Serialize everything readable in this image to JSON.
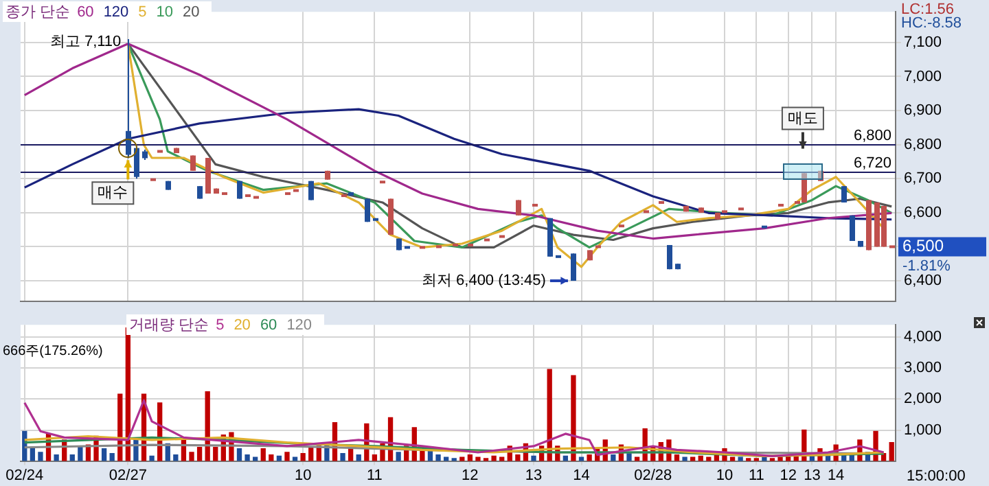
{
  "chart_data": [
    {
      "type": "candlestick",
      "legend_title": "종가 단순",
      "legend": "top left",
      "grid": true,
      "marker": "none",
      "tick_labels": "y",
      "categories": [
        "02/24",
        null,
        null,
        null,
        null,
        null,
        null,
        null,
        null,
        null,
        null,
        null,
        null,
        "02/27",
        null,
        null,
        null,
        null,
        null,
        null,
        null,
        null,
        null,
        null,
        null,
        null,
        null,
        null,
        null,
        null,
        null,
        null,
        null,
        null,
        null,
        "10",
        null,
        null,
        null,
        null,
        null,
        null,
        null,
        null,
        "11",
        null,
        null,
        null,
        null,
        null,
        null,
        null,
        null,
        null,
        null,
        null,
        "12",
        null,
        null,
        null,
        null,
        null,
        null,
        null,
        "13",
        null,
        null,
        null,
        null,
        null,
        "14",
        null,
        null,
        null,
        null,
        null,
        null,
        null,
        null,
        "02/28",
        null,
        null,
        null,
        null,
        null,
        null,
        null,
        null,
        "10",
        null,
        null,
        null,
        "11",
        null,
        null,
        null,
        "12",
        null,
        null,
        "13",
        null,
        null,
        "14",
        null,
        null,
        null,
        null,
        null,
        null,
        null
      ],
      "ylim": [
        6340,
        7190
      ],
      "yticks": [
        {
          "value": 6400,
          "label": "6,400"
        },
        {
          "value": 6500,
          "label": null
        },
        {
          "value": 6600,
          "label": "6,600"
        },
        {
          "value": 6700,
          "label": "6,700"
        },
        {
          "value": 6800,
          "label": "6,800"
        },
        {
          "value": 6900,
          "label": "6,900"
        },
        {
          "value": 7000,
          "label": "7,000"
        },
        {
          "value": 7100,
          "label": "7,100"
        }
      ],
      "series": [
        {
          "color": "#c0504d",
          "ohlc": [
            null,
            null,
            null,
            null,
            null,
            null,
            null,
            null,
            null,
            null,
            null,
            null,
            null,
            null,
            null,
            null,
            [
              6697,
              6697,
              6697,
              6697
            ],
            [
              6780,
              6780,
              6780,
              6780
            ],
            null,
            [
              6775,
              6790,
              6775,
              6790
            ],
            null,
            [
              6723,
              6768,
              6723,
              6768
            ],
            null,
            [
              6656,
              6761,
              6656,
              6761
            ],
            [
              6656,
              6671,
              6656,
              6671
            ],
            [
              6656,
              6656,
              6656,
              6656
            ],
            null,
            null,
            [
              6650,
              6650,
              6650,
              6650
            ],
            [
              6645,
              6645,
              6645,
              6645
            ],
            null,
            null,
            null,
            [
              6656,
              6656,
              6656,
              6656
            ],
            [
              6665,
              6665,
              6665,
              6665
            ],
            null,
            null,
            null,
            [
              6697,
              6723,
              6697,
              6723
            ],
            null,
            [
              6650,
              6650,
              6650,
              6650
            ],
            null,
            null,
            null,
            null,
            [
              6690,
              6690,
              6690,
              6690
            ],
            [
              6535,
              6641,
              6535,
              6641
            ],
            null,
            null,
            null,
            [
              6498,
              6498,
              6498,
              6498
            ],
            null,
            [
              6500,
              6500,
              6500,
              6500
            ],
            null,
            [
              6505,
              6505,
              6505,
              6505
            ],
            null,
            [
              6505,
              6505,
              6505,
              6505
            ],
            null,
            [
              6520,
              6520,
              6520,
              6520
            ],
            null,
            [
              6530,
              6530,
              6530,
              6530
            ],
            null,
            [
              6592,
              6637,
              6592,
              6637
            ],
            null,
            [
              6622,
              6622,
              6622,
              6622
            ],
            null,
            null,
            null,
            null,
            null,
            null,
            [
              6460,
              6490,
              6460,
              6490
            ],
            [
              6500,
              6500,
              6500,
              6500
            ],
            null,
            null,
            [
              6561,
              6561,
              6561,
              6561
            ],
            null,
            null,
            [
              6603,
              6603,
              6603,
              6603
            ],
            null,
            [
              6630,
              6630,
              6630,
              6630
            ],
            null,
            null,
            [
              6603,
              6620,
              6603,
              6620
            ],
            null,
            [
              6600,
              6615,
              6600,
              6615
            ],
            null,
            [
              6580,
              6600,
              6580,
              6600
            ],
            [
              6603,
              6603,
              6603,
              6603
            ],
            null,
            [
              6611,
              6611,
              6611,
              6611
            ],
            null,
            null,
            null,
            null,
            [
              6622,
              6622,
              6622,
              6622
            ],
            null,
            [
              6630,
              6630,
              6630,
              6630
            ],
            [
              6630,
              6716,
              6630,
              6716
            ],
            null,
            [
              6693,
              6723,
              6693,
              6723
            ],
            null,
            null,
            null,
            null,
            null,
            [
              6490,
              6637,
              6490,
              6637
            ],
            [
              6500,
              6630,
              6500,
              6630
            ],
            [
              6500,
              6620,
              6500,
              6620
            ],
            [
              6500,
              6500,
              6500,
              6500
            ]
          ]
        },
        {
          "color": "#1f4e9a",
          "ohlc": [
            null,
            null,
            null,
            null,
            null,
            null,
            null,
            null,
            null,
            null,
            null,
            null,
            null,
            [
              6840,
              7110,
              6760,
              6770
            ],
            [
              6790,
              6795,
              6700,
              6705
            ],
            [
              6780,
              6785,
              6755,
              6760
            ],
            null,
            null,
            [
              6693,
              6693,
              6667,
              6667
            ],
            null,
            null,
            null,
            [
              6678,
              6678,
              6641,
              6641
            ],
            null,
            null,
            null,
            null,
            [
              6693,
              6693,
              6641,
              6641
            ],
            null,
            null,
            null,
            null,
            null,
            null,
            null,
            null,
            [
              6693,
              6693,
              6637,
              6637
            ],
            null,
            null,
            null,
            null,
            [
              6660,
              6660,
              6650,
              6650
            ],
            null,
            [
              6641,
              6641,
              6573,
              6573
            ],
            [
              6580,
              6580,
              6580,
              6580
            ],
            null,
            null,
            [
              6524,
              6524,
              6490,
              6490
            ],
            [
              6498,
              6498,
              6498,
              6498
            ],
            null,
            null,
            null,
            null,
            null,
            null,
            null,
            null,
            null,
            null,
            null,
            null,
            null,
            null,
            null,
            null,
            null,
            [
              6584,
              6584,
              6471,
              6471
            ],
            [
              6471,
              6471,
              6471,
              6471
            ],
            null,
            [
              6480,
              6480,
              6400,
              6400
            ],
            null,
            null,
            null,
            null,
            null,
            null,
            null,
            null,
            null,
            null,
            null,
            [
              6505,
              6505,
              6434,
              6434
            ],
            [
              6450,
              6450,
              6434,
              6434
            ],
            null,
            null,
            null,
            null,
            null,
            null,
            null,
            null,
            null,
            null,
            [
              6558,
              6558,
              6558,
              6558
            ],
            null,
            null,
            null,
            null,
            null,
            null,
            null,
            null,
            null,
            [
              6678,
              6678,
              6630,
              6630
            ],
            [
              6592,
              6592,
              6517,
              6517
            ],
            [
              6517,
              6517,
              6500,
              6500
            ],
            null,
            null,
            null,
            null
          ]
        },
        {
          "type": "line",
          "name": "60",
          "color": "#a0288c",
          "values": [
            6945,
            null,
            null,
            null,
            null,
            null,
            7024,
            null,
            null,
            null,
            null,
            null,
            null,
            7096,
            null,
            null,
            null,
            null,
            null,
            null,
            null,
            null,
            7005,
            null,
            null,
            null,
            null,
            null,
            null,
            null,
            null,
            null,
            null,
            6874,
            null,
            null,
            null,
            null,
            null,
            null,
            null,
            null,
            null,
            null,
            6723,
            null,
            null,
            null,
            null,
            null,
            6656,
            null,
            null,
            null,
            null,
            null,
            null,
            6611,
            null,
            null,
            null,
            null,
            null,
            null,
            6592,
            null,
            null,
            null,
            null,
            null,
            null,
            null,
            6547,
            null,
            null,
            null,
            null,
            null,
            null,
            6524,
            null,
            null,
            null,
            null,
            6535,
            null,
            null,
            null,
            null,
            null,
            null,
            null,
            null,
            6554,
            null,
            null,
            null,
            null,
            null,
            null,
            null,
            6584,
            null,
            null,
            null,
            null,
            null,
            null,
            null,
            6599
          ]
        },
        {
          "type": "line",
          "name": "120",
          "color": "#1a237e",
          "values": [
            6674,
            null,
            null,
            null,
            null,
            null,
            6742,
            null,
            null,
            null,
            null,
            null,
            null,
            6817,
            null,
            null,
            null,
            null,
            null,
            null,
            null,
            null,
            6862,
            null,
            null,
            null,
            null,
            null,
            null,
            null,
            null,
            null,
            null,
            6893,
            null,
            null,
            null,
            null,
            null,
            null,
            null,
            null,
            6904,
            null,
            null,
            null,
            null,
            6885,
            null,
            null,
            null,
            null,
            null,
            null,
            6817,
            null,
            null,
            null,
            null,
            null,
            6772,
            null,
            null,
            null,
            null,
            null,
            null,
            null,
            null,
            null,
            null,
            6723,
            null,
            null,
            null,
            null,
            null,
            null,
            null,
            6648,
            null,
            null,
            null,
            null,
            null,
            null,
            6599,
            null,
            null,
            null,
            null,
            null,
            null,
            null,
            6592,
            null,
            null,
            null,
            null,
            null,
            null,
            6584,
            null,
            null,
            null,
            null,
            null,
            null,
            null,
            6580
          ]
        },
        {
          "type": "line",
          "name": "5",
          "color": "#e0b030",
          "values": [
            null,
            null,
            null,
            null,
            null,
            null,
            null,
            null,
            null,
            null,
            null,
            null,
            null,
            7096,
            null,
            6799,
            6761,
            null,
            null,
            null,
            6761,
            null,
            null,
            null,
            null,
            6705,
            null,
            null,
            null,
            null,
            6659,
            null,
            null,
            null,
            null,
            null,
            null,
            6686,
            null,
            null,
            null,
            null,
            6630,
            null,
            null,
            null,
            6535,
            null,
            null,
            null,
            6498,
            null,
            null,
            null,
            null,
            6509,
            null,
            null,
            null,
            null,
            6547,
            null,
            null,
            null,
            null,
            6611,
            null,
            6498,
            null,
            null,
            6441,
            null,
            6498,
            null,
            null,
            6573,
            null,
            null,
            null,
            6622,
            null,
            null,
            6573,
            null,
            null,
            null,
            6584,
            null,
            null,
            null,
            null,
            6592,
            null,
            null,
            null,
            null,
            6611,
            null,
            null,
            6667,
            null,
            null,
            6705,
            null,
            null,
            6630,
            null,
            null,
            6554,
            null
          ]
        },
        {
          "type": "line",
          "name": "10",
          "color": "#3a9a5a",
          "values": [
            null,
            null,
            null,
            null,
            null,
            null,
            null,
            null,
            null,
            null,
            null,
            null,
            null,
            7096,
            null,
            null,
            null,
            6874,
            6780,
            null,
            null,
            null,
            null,
            6723,
            null,
            null,
            null,
            null,
            null,
            null,
            6667,
            null,
            null,
            null,
            null,
            null,
            null,
            null,
            6686,
            null,
            null,
            null,
            null,
            null,
            6630,
            null,
            null,
            null,
            null,
            6517,
            null,
            null,
            null,
            null,
            null,
            6498,
            null,
            null,
            null,
            null,
            null,
            null,
            6573,
            null,
            null,
            6592,
            null,
            6554,
            null,
            null,
            null,
            6498,
            null,
            null,
            null,
            null,
            6554,
            null,
            null,
            null,
            null,
            6611,
            null,
            null,
            null,
            null,
            null,
            null,
            6599,
            null,
            null,
            null,
            null,
            null,
            6592,
            null,
            null,
            null,
            null,
            6637,
            null,
            null,
            6678,
            null,
            null,
            null,
            6637,
            null,
            null,
            6599
          ]
        },
        {
          "type": "line",
          "name": "20",
          "color": "#555555",
          "values": [
            null,
            null,
            null,
            null,
            null,
            null,
            null,
            null,
            null,
            null,
            null,
            null,
            null,
            7096,
            null,
            null,
            null,
            null,
            null,
            null,
            null,
            null,
            null,
            null,
            6742,
            null,
            null,
            null,
            null,
            null,
            6705,
            null,
            null,
            null,
            null,
            null,
            null,
            null,
            6667,
            null,
            null,
            null,
            null,
            null,
            null,
            6630,
            null,
            null,
            null,
            null,
            6554,
            null,
            null,
            null,
            null,
            6498,
            null,
            null,
            null,
            6498,
            null,
            null,
            null,
            null,
            6562,
            null,
            null,
            null,
            null,
            6535,
            null,
            null,
            null,
            null,
            6520,
            null,
            null,
            null,
            null,
            6554,
            null,
            null,
            null,
            null,
            6573,
            null,
            null,
            null,
            null,
            null,
            null,
            6592,
            null,
            null,
            null,
            null,
            6599,
            null,
            null,
            null,
            null,
            6630,
            null,
            null,
            null,
            6641,
            null,
            null,
            null,
            6618
          ]
        }
      ],
      "ref_lines": [
        {
          "axis": "y",
          "value": 6800,
          "label": "6,800",
          "color": "#1a1a60"
        },
        {
          "axis": "y",
          "value": 6720,
          "label": "6,720",
          "color": "#1a1a60"
        }
      ],
      "annotations": [
        {
          "text": "최고 7,110",
          "x": "02/27",
          "y": 7110
        },
        "매수",
        "최저 6,400 (13:45)",
        "매도",
        "LC:1.56",
        "HC:-8.58",
        "6,500",
        "-1.81%"
      ]
    },
    {
      "type": "bar",
      "legend_title": "거래량 단순",
      "legend": "top left",
      "grid": true,
      "marker": "none",
      "categories": [
        "02/24",
        null,
        null,
        null,
        null,
        null,
        null,
        null,
        null,
        null,
        null,
        null,
        null,
        "02/27",
        null,
        null,
        null,
        null,
        null,
        null,
        null,
        null,
        null,
        null,
        null,
        null,
        null,
        null,
        null,
        null,
        null,
        null,
        null,
        null,
        null,
        "10",
        null,
        null,
        null,
        null,
        null,
        null,
        null,
        null,
        "11",
        null,
        null,
        null,
        null,
        null,
        null,
        null,
        null,
        null,
        null,
        null,
        "12",
        null,
        null,
        null,
        null,
        null,
        null,
        null,
        "13",
        null,
        null,
        null,
        null,
        null,
        "14",
        null,
        null,
        null,
        null,
        null,
        null,
        null,
        null,
        "02/28",
        null,
        null,
        null,
        null,
        null,
        null,
        null,
        null,
        "10",
        null,
        null,
        null,
        "11",
        null,
        null,
        null,
        "12",
        null,
        null,
        "13",
        null,
        null,
        "14",
        null,
        null,
        null,
        null,
        null,
        null,
        null
      ],
      "ylim": [
        0,
        4400
      ],
      "yticks": [
        {
          "value": 1000,
          "label": "1,000"
        },
        {
          "value": 2000,
          "label": "2,000"
        },
        {
          "value": 3000,
          "label": "3,000"
        },
        {
          "value": 4000,
          "label": "4,000"
        }
      ],
      "series": [
        {
          "values": [
            960,
            440,
            280,
            880,
            200,
            680,
            200,
            440,
            520,
            800,
            400,
            240,
            2160,
            4300,
            720,
            2160,
            160,
            1880,
            560,
            200,
            760,
            280,
            440,
            2240,
            440,
            840,
            920,
            400,
            200,
            120,
            400,
            200,
            160,
            280,
            120,
            240,
            440,
            480,
            600,
            1240,
            240,
            400,
            200,
            1200,
            200,
            560,
            1400,
            280,
            480,
            1080,
            440,
            320,
            200,
            120,
            80,
            120,
            200,
            120,
            80,
            160,
            120,
            480,
            200,
            560,
            160,
            480,
            2960,
            480,
            160,
            2760,
            120,
            200,
            400,
            680,
            200,
            520,
            240,
            120,
            1040,
            480,
            600,
            680,
            200,
            120,
            120,
            160,
            120,
            200,
            400,
            120,
            120,
            80,
            80,
            120,
            80,
            120,
            200,
            160,
            1000,
            200,
            400,
            160,
            520,
            200,
            240,
            680,
            280,
            960,
            240,
            600
          ],
          "colors": [
            "#1f4e9a",
            "#1f4e9a",
            "#1f4e9a",
            "#c00000",
            "#1f4e9a",
            "#c00000",
            "#1f4e9a",
            "#1f4e9a",
            "#c00000",
            "#c00000",
            "#1f4e9a",
            "#1f4e9a",
            "#c00000",
            "#c00000",
            "#1f4e9a",
            "#c00000",
            "#1f4e9a",
            "#c00000",
            "#1f4e9a",
            "#1f4e9a",
            "#c00000",
            "#c00000",
            "#c00000",
            "#c00000",
            "#c00000",
            "#c00000",
            "#c00000",
            "#1f4e9a",
            "#1f4e9a",
            "#1f4e9a",
            "#c00000",
            "#c00000",
            "#1f4e9a",
            "#c00000",
            "#1f4e9a",
            "#c00000",
            "#c00000",
            "#c00000",
            "#1f4e9a",
            "#c00000",
            "#1f4e9a",
            "#c00000",
            "#1f4e9a",
            "#c00000",
            "#c00000",
            "#c00000",
            "#c00000",
            "#1f4e9a",
            "#c00000",
            "#c00000",
            "#c00000",
            "#1f4e9a",
            "#1f4e9a",
            "#1f4e9a",
            "#1f4e9a",
            "#c00000",
            "#c00000",
            "#c00000",
            "#c00000",
            "#c00000",
            "#c00000",
            "#c00000",
            "#c00000",
            "#c00000",
            "#1f4e9a",
            "#c00000",
            "#c00000",
            "#c00000",
            "#1f4e9a",
            "#c00000",
            "#1f4e9a",
            "#c00000",
            "#c00000",
            "#c00000",
            "#1f4e9a",
            "#c00000",
            "#1f4e9a",
            "#c00000",
            "#c00000",
            "#c00000",
            "#c00000",
            "#c00000",
            "#c00000",
            "#1f4e9a",
            "#c00000",
            "#c00000",
            "#c00000",
            "#c00000",
            "#c00000",
            "#c00000",
            "#1f4e9a",
            "#c00000",
            "#c00000",
            "#1f4e9a",
            "#c00000",
            "#c00000",
            "#c00000",
            "#c00000",
            "#c00000",
            "#1f4e9a",
            "#c00000",
            "#1f4e9a",
            "#c00000",
            "#1f4e9a",
            "#1f4e9a",
            "#c00000",
            "#1f4e9a",
            "#c00000",
            "#c00000",
            "#c00000"
          ]
        },
        {
          "type": "line",
          "name": "5",
          "color": "#b03090",
          "values": [
            1880,
            null,
            960,
            null,
            null,
            760,
            null,
            null,
            null,
            null,
            null,
            null,
            null,
            680,
            null,
            1960,
            1280,
            null,
            null,
            null,
            760,
            null,
            null,
            null,
            null,
            null,
            null,
            null,
            null,
            null,
            null,
            null,
            null,
            480,
            null,
            null,
            null,
            null,
            null,
            null,
            null,
            null,
            680,
            null,
            null,
            null,
            null,
            null,
            null,
            null,
            480,
            null,
            null,
            null,
            null,
            null,
            null,
            280,
            null,
            null,
            null,
            null,
            null,
            null,
            480,
            null,
            null,
            null,
            880,
            null,
            null,
            680,
            200,
            null,
            null,
            null,
            null,
            null,
            null,
            480,
            null,
            null,
            360,
            null,
            null,
            null,
            null,
            null,
            280,
            null,
            null,
            null,
            null,
            null,
            160,
            null,
            null,
            null,
            null,
            null,
            null,
            280,
            null,
            null,
            null,
            480,
            null,
            null,
            280,
            null
          ]
        },
        {
          "type": "line",
          "name": "20",
          "color": "#e0b030",
          "values": [
            680,
            null,
            null,
            null,
            null,
            null,
            null,
            null,
            800,
            null,
            null,
            null,
            null,
            null,
            null,
            null,
            680,
            null,
            null,
            null,
            null,
            null,
            null,
            null,
            null,
            760,
            null,
            null,
            null,
            null,
            null,
            null,
            null,
            600,
            null,
            null,
            null,
            null,
            null,
            null,
            null,
            null,
            480,
            null,
            null,
            null,
            null,
            null,
            null,
            null,
            360,
            null,
            null,
            null,
            null,
            null,
            null,
            null,
            null,
            280,
            null,
            null,
            null,
            null,
            null,
            null,
            null,
            400,
            null,
            null,
            null,
            null,
            null,
            null,
            null,
            null,
            440,
            null,
            null,
            null,
            null,
            null,
            null,
            null,
            280,
            null,
            null,
            null,
            null,
            null,
            null,
            null,
            null,
            160,
            null,
            null,
            null,
            null,
            null,
            null,
            null,
            200,
            null,
            null,
            null,
            null,
            null,
            null,
            280,
            null
          ]
        },
        {
          "type": "line",
          "name": "60",
          "color": "#2e8b57",
          "values": [
            600,
            null,
            null,
            null,
            null,
            null,
            null,
            null,
            null,
            null,
            null,
            null,
            null,
            null,
            null,
            null,
            760,
            null,
            null,
            null,
            null,
            null,
            null,
            null,
            null,
            680,
            null,
            null,
            null,
            null,
            null,
            null,
            null,
            null,
            null,
            560,
            null,
            null,
            null,
            null,
            null,
            null,
            null,
            null,
            480,
            null,
            null,
            null,
            null,
            null,
            null,
            null,
            null,
            null,
            null,
            360,
            null,
            null,
            null,
            null,
            null,
            null,
            null,
            null,
            null,
            null,
            null,
            280,
            null,
            null,
            null,
            null,
            null,
            null,
            null,
            null,
            null,
            null,
            null,
            null,
            null,
            280,
            null,
            null,
            null,
            null,
            null,
            null,
            null,
            null,
            null,
            null,
            null,
            160,
            null,
            null,
            null,
            null,
            null,
            null,
            null,
            200,
            null,
            null,
            null,
            null,
            null,
            null,
            240,
            null
          ]
        },
        {
          "type": "line",
          "name": "120",
          "color": "#888888",
          "values": [
            440,
            null,
            null,
            null,
            null,
            null,
            null,
            null,
            null,
            null,
            null,
            null,
            null,
            null,
            null,
            null,
            520,
            null,
            null,
            null,
            null,
            null,
            null,
            null,
            null,
            null,
            null,
            null,
            null,
            null,
            null,
            null,
            null,
            480,
            null,
            null,
            null,
            null,
            null,
            null,
            null,
            null,
            null,
            null,
            null,
            null,
            null,
            null,
            null,
            null,
            360,
            null,
            null,
            null,
            null,
            null,
            null,
            null,
            null,
            null,
            null,
            null,
            null,
            null,
            null,
            null,
            null,
            280,
            null,
            null,
            null,
            null,
            null,
            null,
            null,
            null,
            null,
            null,
            null,
            null,
            null,
            null,
            null,
            null,
            280,
            null,
            null,
            null,
            null,
            null,
            null,
            null,
            null,
            null,
            null,
            null,
            null,
            null,
            null,
            null,
            null,
            null,
            null,
            null,
            null,
            null,
            null,
            null,
            240,
            null
          ]
        }
      ],
      "annotations": [
        "666주(175.26%)",
        "15:00:00"
      ]
    }
  ]
}
